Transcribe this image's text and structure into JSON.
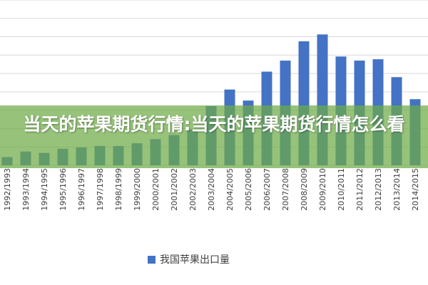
{
  "overlay": {
    "title": "当天的苹果期货行情:当天的苹果期货行情怎么看"
  },
  "colors": {
    "bar": "#4472c4",
    "overlay_band": "#6eaa46"
  },
  "chart_data": {
    "type": "bar",
    "categories": [
      "1992/1993",
      "1993/1994",
      "1994/1995",
      "1995/1996",
      "1996/1997",
      "1997/1998",
      "1998/1999",
      "1999/2000",
      "2000/2001",
      "2001/2002",
      "2002/2003",
      "2003/2004",
      "2004/2005",
      "2005/2006",
      "2006/2007",
      "2007/2008",
      "2008/2009",
      "2009/2010",
      "2010/2011",
      "2011/2012",
      "2012/2013",
      "2013/2014",
      "2014/2015"
    ],
    "series": [
      {
        "name": "我国苹果出口量",
        "values": [
          6,
          10,
          9,
          12,
          13,
          14,
          14,
          16,
          19,
          22,
          26,
          43,
          55,
          47,
          68,
          76,
          90,
          95,
          79,
          76,
          77,
          64,
          48
        ]
      }
    ],
    "ylim": [
      0,
      120
    ],
    "legend_position": "bottom",
    "grid": true
  }
}
